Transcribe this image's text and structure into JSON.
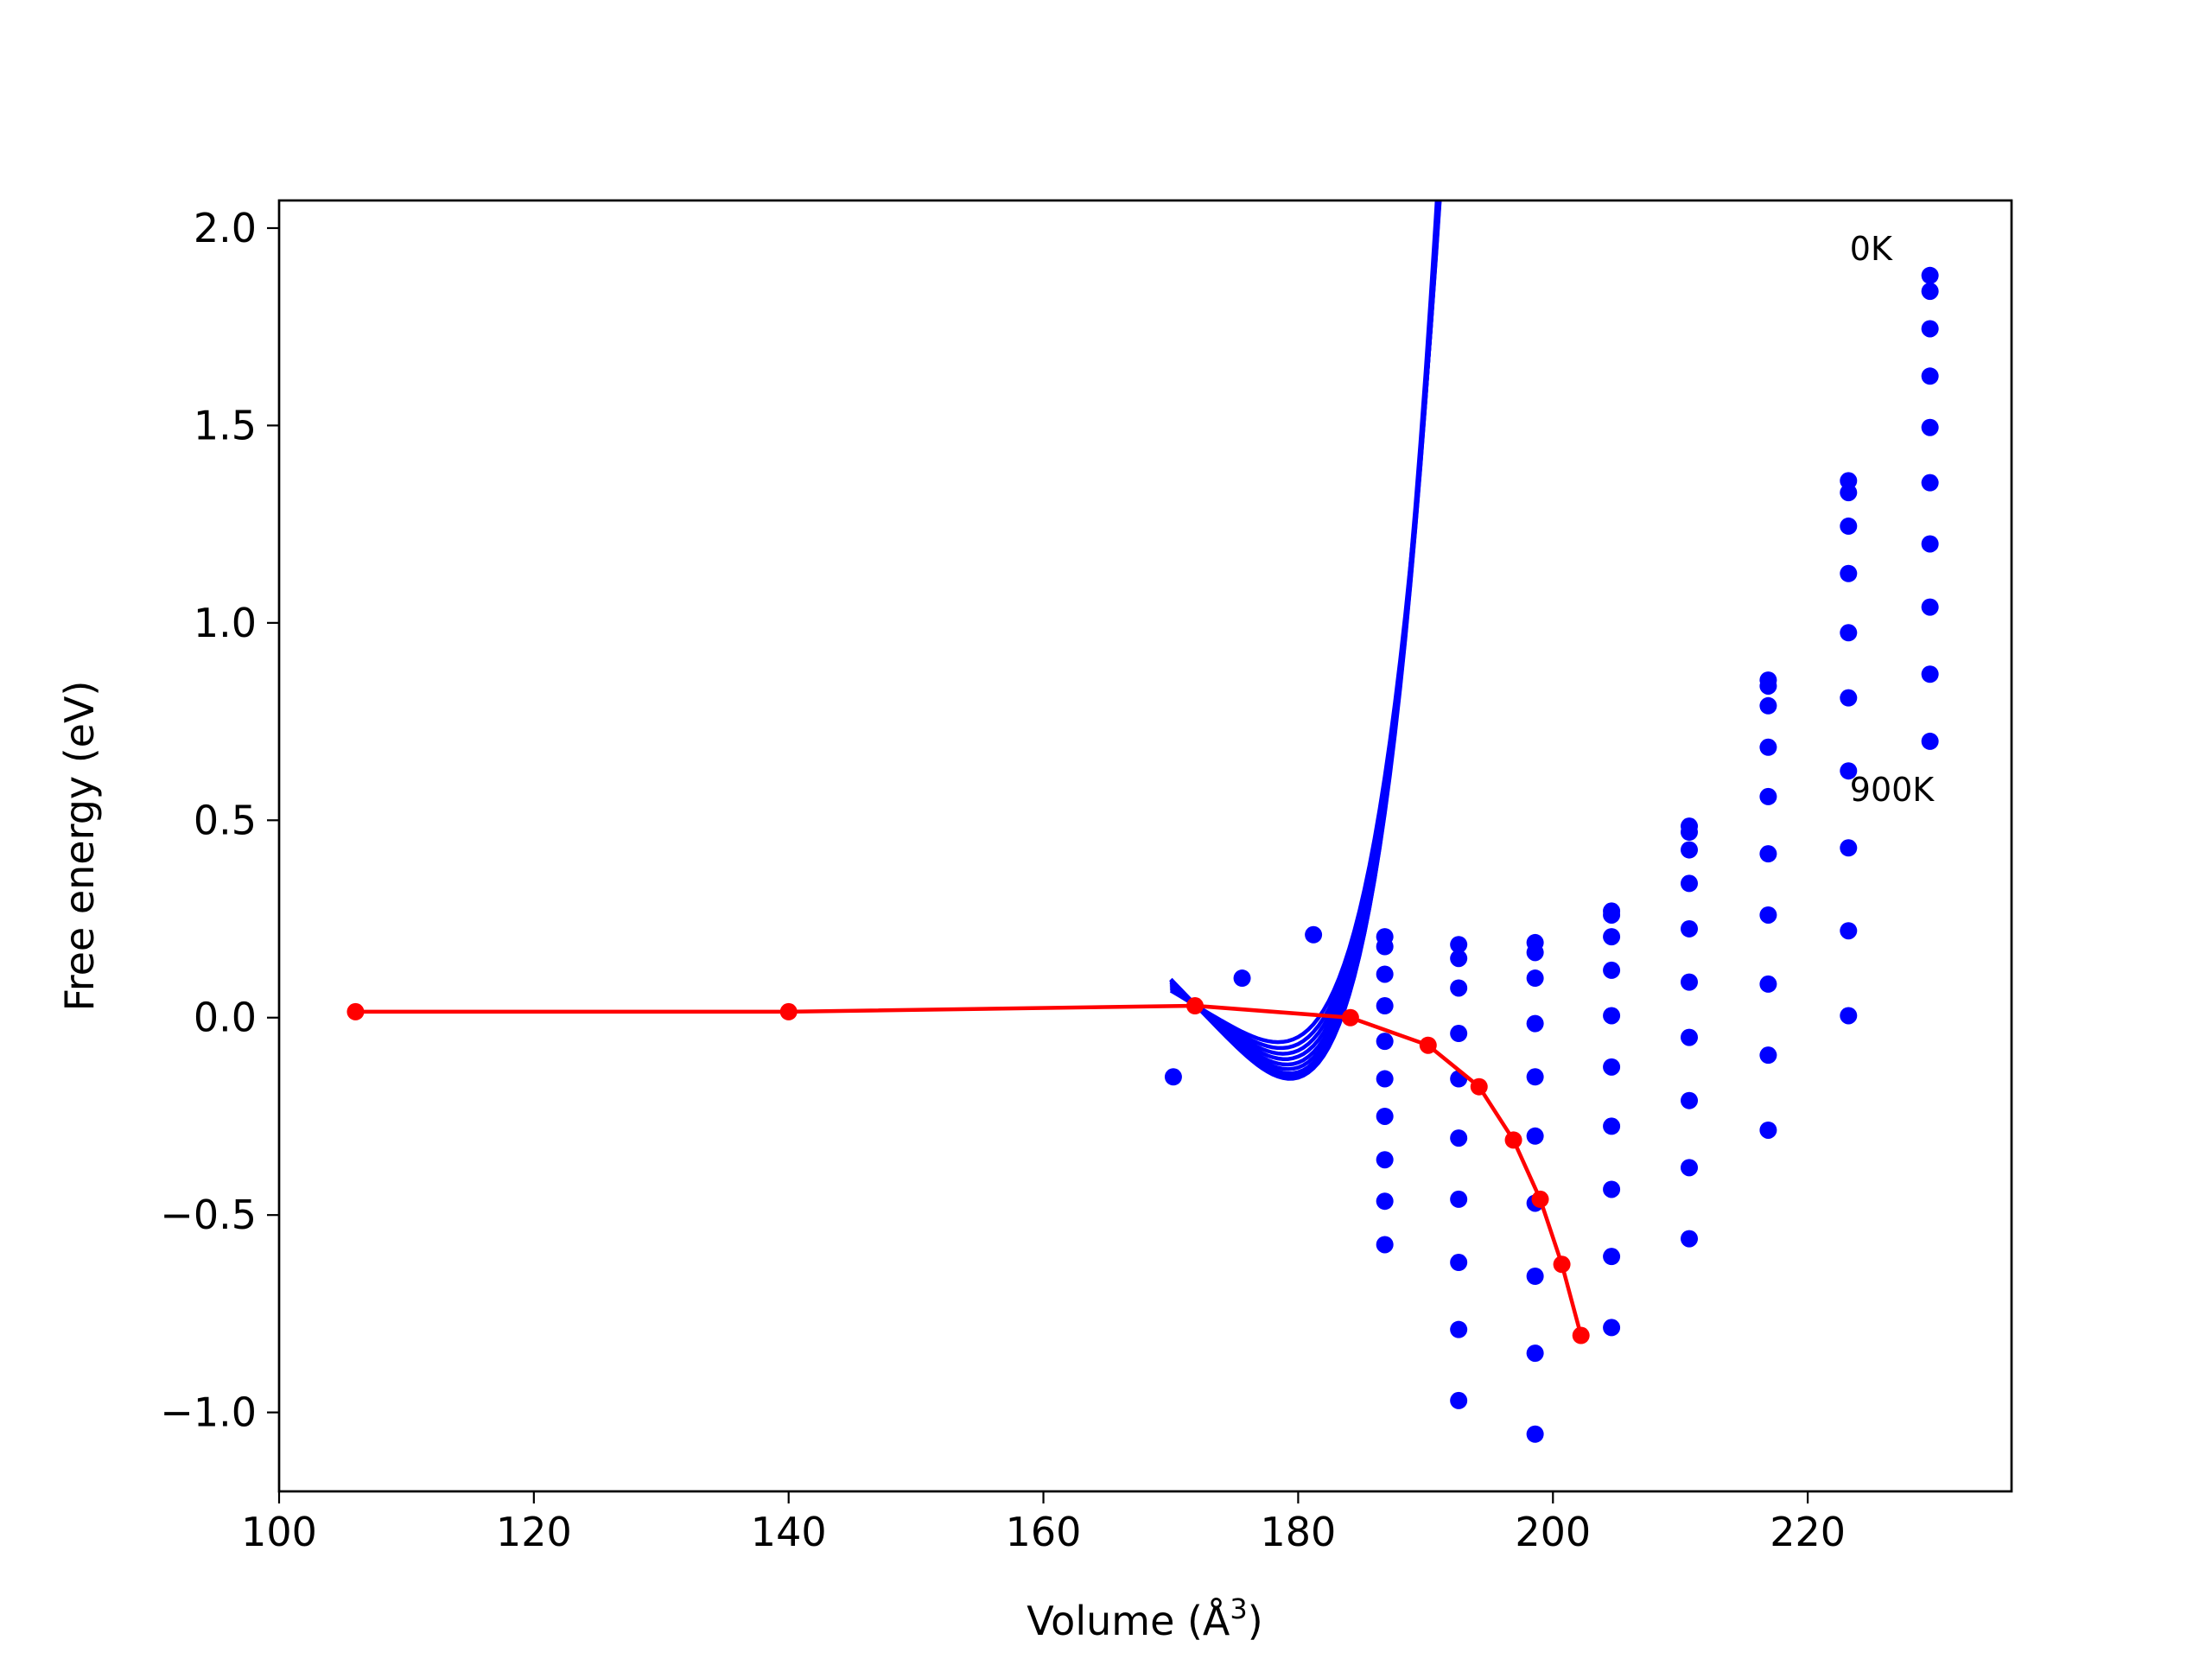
{
  "chart_data": {
    "type": "line",
    "title": "",
    "xlabel": "Volume (Å3)",
    "ylabel": "Free energy (eV)",
    "xlim": [
      100,
      236
    ],
    "ylim": [
      -1.2,
      2.07
    ],
    "xticks": [
      100,
      120,
      140,
      160,
      180,
      200,
      220
    ],
    "xtick_labels": [
      "100",
      "120",
      "140",
      "160",
      "180",
      "200",
      "220"
    ],
    "yticks": [
      -1.0,
      -0.5,
      0.0,
      0.5,
      1.0,
      1.5,
      2.0
    ],
    "ytick_labels": [
      "−1.0",
      "−0.5",
      "0.0",
      "0.5",
      "1.0",
      "1.5",
      "2.0"
    ],
    "grid": false,
    "annotations": [
      {
        "text": "0K",
        "x": 223.3,
        "y": 1.95
      },
      {
        "text": "900K",
        "x": 223.3,
        "y": 0.58
      }
    ],
    "colors": {
      "fit_curves": "#0000ff",
      "data_points": "#0000ff",
      "minimum_path": "#ff0000"
    },
    "series": [
      {
        "type": "fit_curves",
        "color": "#0000ff",
        "x_range": [
          170,
          229.6
        ],
        "v0": 172.0,
        "curves": [
          {
            "a": 2.1e-05,
            "c": 1.93
          },
          {
            "a": 2.05e-05,
            "c": 1.91
          },
          {
            "a": 2.02e-05,
            "c": 1.87
          },
          {
            "a": 2e-05,
            "c": 1.8
          },
          {
            "a": 1.98e-05,
            "c": 1.71
          },
          {
            "a": 1.95e-05,
            "c": 1.61
          },
          {
            "a": 1.91e-05,
            "c": 1.49
          },
          {
            "a": 1.88e-05,
            "c": 1.37
          },
          {
            "a": 1.84e-05,
            "c": 1.24
          },
          {
            "a": 1.8e-05,
            "c": 1.1
          }
        ]
      },
      {
        "type": "scatter",
        "color": "#0000ff",
        "points": [
          [
            170.2,
            -0.15
          ],
          [
            175.6,
            0.1
          ],
          [
            181.2,
            0.21
          ],
          [
            186.8,
            0.205
          ],
          [
            186.8,
            0.18
          ],
          [
            186.8,
            0.11
          ],
          [
            186.8,
            0.03
          ],
          [
            186.8,
            -0.06
          ],
          [
            186.8,
            -0.155
          ],
          [
            186.8,
            -0.25
          ],
          [
            186.8,
            -0.36
          ],
          [
            186.8,
            -0.465
          ],
          [
            186.8,
            -0.575
          ],
          [
            192.6,
            0.185
          ],
          [
            192.6,
            0.15
          ],
          [
            192.6,
            0.075
          ],
          [
            192.6,
            -0.04
          ],
          [
            192.6,
            -0.155
          ],
          [
            192.6,
            -0.305
          ],
          [
            192.6,
            -0.46
          ],
          [
            192.6,
            -0.62
          ],
          [
            192.6,
            -0.79
          ],
          [
            192.6,
            -0.97
          ],
          [
            198.6,
            0.19
          ],
          [
            198.6,
            0.165
          ],
          [
            198.6,
            0.1
          ],
          [
            198.6,
            -0.015
          ],
          [
            198.6,
            -0.15
          ],
          [
            198.6,
            -0.3
          ],
          [
            198.6,
            -0.47
          ],
          [
            198.6,
            -0.655
          ],
          [
            198.6,
            -0.85
          ],
          [
            198.6,
            -1.055
          ],
          [
            204.6,
            0.27
          ],
          [
            204.6,
            0.26
          ],
          [
            204.6,
            0.205
          ],
          [
            204.6,
            0.12
          ],
          [
            204.6,
            0.005
          ],
          [
            204.6,
            -0.125
          ],
          [
            204.6,
            -0.275
          ],
          [
            204.6,
            -0.435
          ],
          [
            204.6,
            -0.605
          ],
          [
            204.6,
            -0.785
          ],
          [
            210.7,
            0.485
          ],
          [
            210.7,
            0.47
          ],
          [
            210.7,
            0.425
          ],
          [
            210.7,
            0.34
          ],
          [
            210.7,
            0.225
          ],
          [
            210.7,
            0.09
          ],
          [
            210.7,
            -0.05
          ],
          [
            210.7,
            -0.21
          ],
          [
            210.7,
            -0.38
          ],
          [
            210.7,
            -0.56
          ],
          [
            216.9,
            0.855
          ],
          [
            216.9,
            0.84
          ],
          [
            216.9,
            0.79
          ],
          [
            216.9,
            0.685
          ],
          [
            216.9,
            0.56
          ],
          [
            216.9,
            0.415
          ],
          [
            216.9,
            0.26
          ],
          [
            216.9,
            0.085
          ],
          [
            216.9,
            -0.095
          ],
          [
            216.9,
            -0.285
          ],
          [
            223.2,
            1.36
          ],
          [
            223.2,
            1.33
          ],
          [
            223.2,
            1.245
          ],
          [
            223.2,
            1.125
          ],
          [
            223.2,
            0.975
          ],
          [
            223.2,
            0.81
          ],
          [
            223.2,
            0.625
          ],
          [
            223.2,
            0.43
          ],
          [
            223.2,
            0.22
          ],
          [
            223.2,
            0.005
          ],
          [
            229.6,
            1.88
          ],
          [
            229.6,
            1.84
          ],
          [
            229.6,
            1.745
          ],
          [
            229.6,
            1.625
          ],
          [
            229.6,
            1.495
          ],
          [
            229.6,
            1.355
          ],
          [
            229.6,
            1.2
          ],
          [
            229.6,
            1.04
          ],
          [
            229.6,
            0.87
          ],
          [
            229.6,
            0.7
          ]
        ]
      },
      {
        "type": "line",
        "color": "#ff0000",
        "points": [
          [
            106,
            0.015
          ],
          [
            140,
            0.015
          ],
          [
            171.9,
            0.03
          ],
          [
            184.1,
            0.0
          ],
          [
            190.2,
            -0.07
          ],
          [
            194.2,
            -0.175
          ],
          [
            196.9,
            -0.31
          ],
          [
            199.0,
            -0.46
          ],
          [
            200.7,
            -0.625
          ],
          [
            202.2,
            -0.805
          ]
        ]
      }
    ]
  }
}
